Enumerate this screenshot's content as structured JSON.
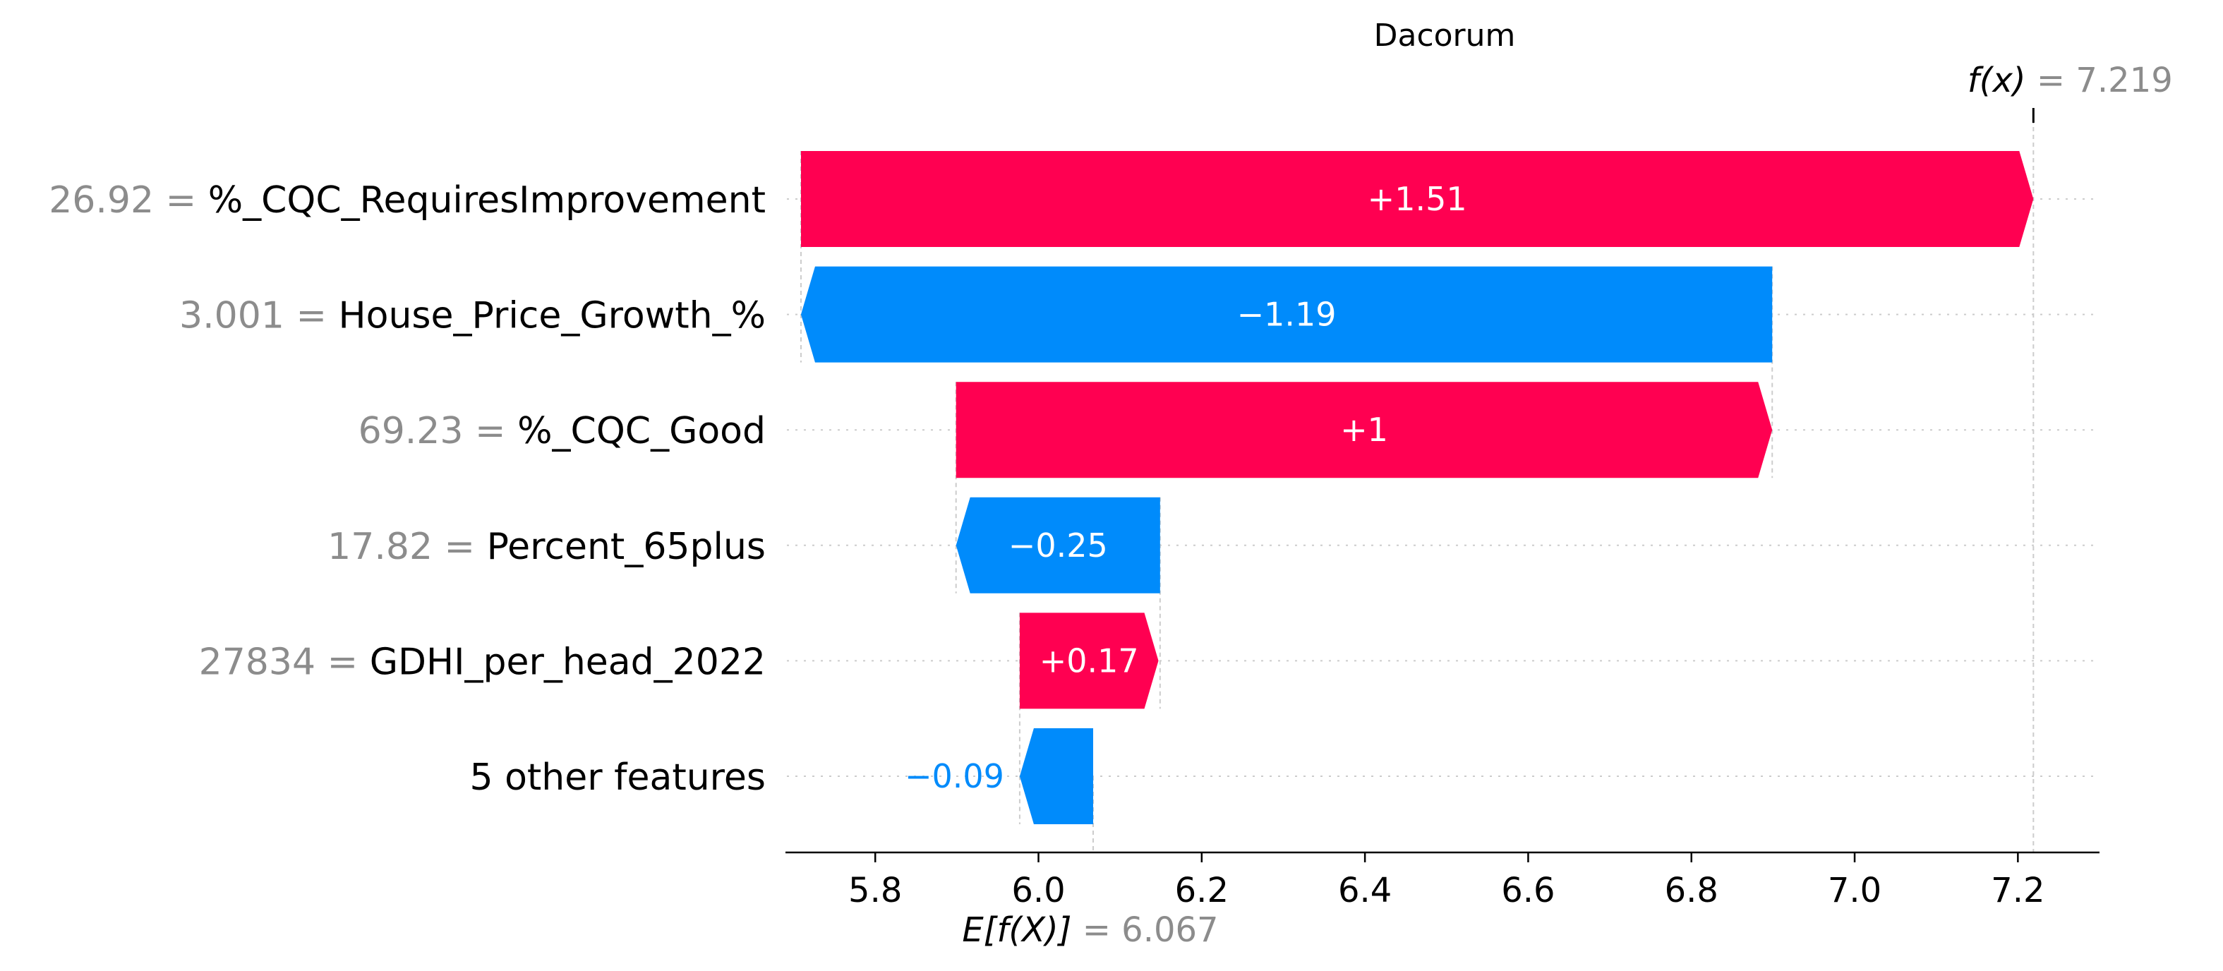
{
  "chart_data": {
    "type": "waterfall",
    "title": "Dacorum",
    "xlim": [
      5.69,
      7.3
    ],
    "xticks": [
      5.8,
      6.0,
      6.2,
      6.4,
      6.6,
      6.8,
      7.0,
      7.2
    ],
    "xtick_labels": [
      "5.8",
      "6.0",
      "6.2",
      "6.4",
      "6.6",
      "6.8",
      "7.0",
      "7.2"
    ],
    "base_value": 6.067,
    "base_label_prefix": "E[f(X)]",
    "base_label_value": "= 6.067",
    "output_value": 7.219,
    "output_label_prefix": "f(x)",
    "output_label_value": "= 7.219",
    "colors": {
      "positive": "#ff0051",
      "negative": "#008bfb",
      "grid": "#cccccc",
      "muted": "#8c8c8c"
    },
    "features": [
      {
        "value_text": "26.92 =",
        "name": "%_CQC_RequiresImprovement",
        "start": 5.709,
        "end": 7.219,
        "contribution": 1.51,
        "label": "+1.51"
      },
      {
        "value_text": "3.001 =",
        "name": "House_Price_Growth_%",
        "start": 6.899,
        "end": 5.709,
        "contribution": -1.19,
        "label": "−1.19"
      },
      {
        "value_text": "69.23 =",
        "name": "%_CQC_Good",
        "start": 5.899,
        "end": 6.899,
        "contribution": 1.0,
        "label": "+1"
      },
      {
        "value_text": "17.82 =",
        "name": "Percent_65plus",
        "start": 6.149,
        "end": 5.899,
        "contribution": -0.25,
        "label": "−0.25"
      },
      {
        "value_text": "27834 =",
        "name": "GDHI_per_head_2022",
        "start": 5.977,
        "end": 6.147,
        "contribution": 0.17,
        "label": "+0.17"
      },
      {
        "value_text": "",
        "name": "5 other features",
        "start": 6.067,
        "end": 5.977,
        "contribution": -0.09,
        "label": "−0.09"
      }
    ]
  }
}
